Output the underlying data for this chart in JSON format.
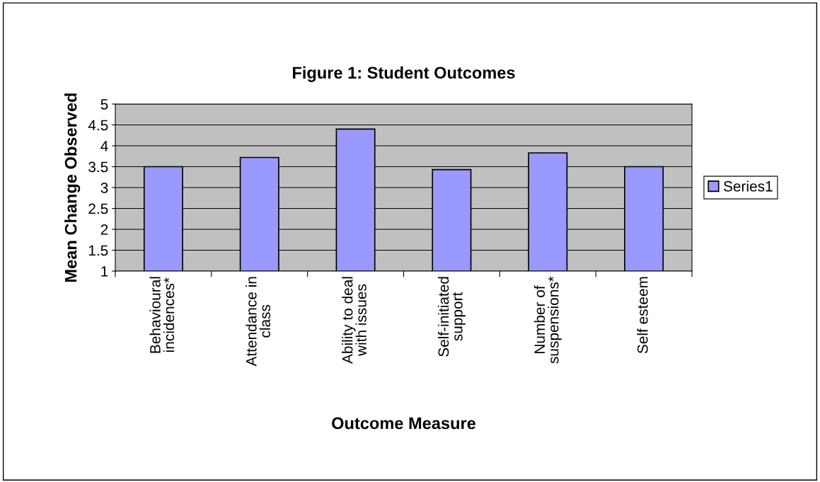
{
  "chart_data": {
    "type": "bar",
    "title": "Figure 1: Student Outcomes",
    "xlabel": "Outcome Measure",
    "ylabel": "Mean Change Observed",
    "categories": [
      "Behavioural\nincidences*",
      "Attendance in\nclass",
      "Ability to deal\nwith issues",
      "Self-initiated\nsupport",
      "Number of\nsuspensions*",
      "Self esteem"
    ],
    "series": [
      {
        "name": "Series1",
        "color": "#9999ff",
        "values": [
          3.5,
          3.72,
          4.4,
          3.43,
          3.83,
          3.5
        ]
      }
    ],
    "ylim": [
      1,
      5
    ],
    "yticks": [
      1,
      1.5,
      2,
      2.5,
      3,
      3.5,
      4,
      4.5,
      5
    ],
    "grid": "y",
    "legend": "right"
  }
}
